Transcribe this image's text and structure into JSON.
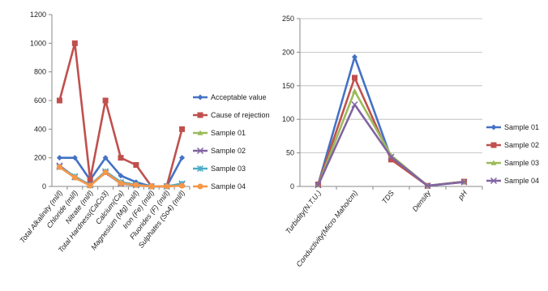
{
  "chart_data": [
    {
      "type": "line",
      "title": "",
      "xlabel": "",
      "ylabel": "",
      "ylim": [
        0,
        1200
      ],
      "yticks": [
        0,
        200,
        400,
        600,
        800,
        1000,
        1200
      ],
      "grid": false,
      "legend": "right",
      "categories": [
        "Total Alkalinity (ml/l)",
        "Chloride (ml/l)",
        "Nitrate (ml/l)",
        "Total Hardness(CaCo3)",
        "Calcium(Ca)",
        "Magnesium (Mg) (ml/l)",
        "Iron (Fe) (ml/l)",
        "Fluorides (F) (ml/l)",
        "Sulphates (So4) (ml/l)"
      ],
      "series": [
        {
          "name": "Acceptable value",
          "color": "#4472C4",
          "marker": "diamond",
          "values": [
            200,
            200,
            45,
            200,
            75,
            30,
            0.3,
            1,
            200
          ]
        },
        {
          "name": "Cause of rejection",
          "color": "#C0504D",
          "marker": "square",
          "values": [
            600,
            1000,
            45,
            600,
            200,
            150,
            1,
            1.5,
            400
          ]
        },
        {
          "name": "Sample 01",
          "color": "#9BBB59",
          "marker": "triangle",
          "values": [
            140,
            60,
            10,
            100,
            25,
            10,
            0.2,
            0.5,
            10
          ]
        },
        {
          "name": "Sample 02",
          "color": "#8064A2",
          "marker": "x",
          "values": [
            145,
            65,
            12,
            95,
            20,
            8,
            0.1,
            0.3,
            15
          ]
        },
        {
          "name": "Sample 03",
          "color": "#4BACC6",
          "marker": "asterisk",
          "values": [
            135,
            70,
            8,
            105,
            30,
            12,
            0.2,
            0.4,
            20
          ]
        },
        {
          "name": "Sample 04",
          "color": "#F79646",
          "marker": "circle",
          "values": [
            135,
            62,
            5,
            98,
            22,
            10,
            0.1,
            0.2,
            5
          ]
        }
      ]
    },
    {
      "type": "line",
      "title": "",
      "xlabel": "",
      "ylabel": "",
      "ylim": [
        0,
        250
      ],
      "yticks": [
        0,
        50,
        100,
        150,
        200,
        250
      ],
      "grid": true,
      "legend": "right",
      "categories": [
        "Turbidity(N.T.U.)",
        "Conductivity(Micro Maho/cm)",
        "TDS",
        "Density",
        "pH"
      ],
      "series": [
        {
          "name": "Sample 01",
          "color": "#4472C4",
          "marker": "diamond",
          "values": [
            3,
            193,
            42,
            1,
            7
          ]
        },
        {
          "name": "Sample 02",
          "color": "#C0504D",
          "marker": "square",
          "values": [
            3,
            162,
            40,
            1,
            7.2
          ]
        },
        {
          "name": "Sample 03",
          "color": "#9BBB59",
          "marker": "triangle",
          "values": [
            2,
            142,
            46,
            1,
            6.8
          ]
        },
        {
          "name": "Sample 04",
          "color": "#8064A2",
          "marker": "x",
          "values": [
            2,
            122,
            44,
            1,
            6.5
          ]
        }
      ]
    }
  ]
}
